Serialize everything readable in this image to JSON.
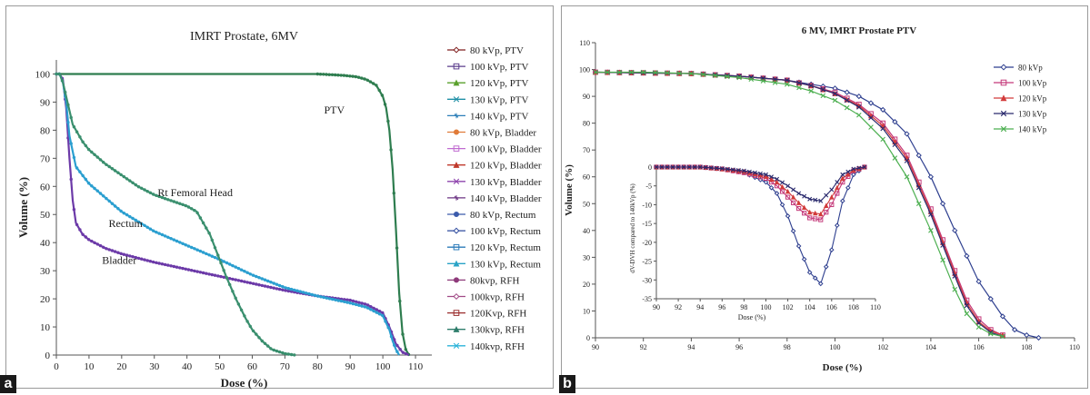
{
  "chart_data": [
    {
      "panel_label": "a",
      "type": "line",
      "title": "IMRT Prostate, 6MV",
      "xlabel": "Dose (%)",
      "ylabel": "Volume (%)",
      "xlim": [
        0,
        115
      ],
      "ylim": [
        0,
        105
      ],
      "xticks": [
        0,
        10,
        20,
        30,
        40,
        50,
        60,
        70,
        80,
        90,
        100,
        110
      ],
      "yticks": [
        0,
        10,
        20,
        30,
        40,
        50,
        60,
        70,
        80,
        90,
        100
      ],
      "grid": false,
      "legend_position": "right",
      "annotations": [
        "PTV",
        "Rt Femoral Head",
        "Rectum",
        "Bladder"
      ],
      "legend": [
        {
          "name": "80 kVp, PTV",
          "color": "#7f1d1d",
          "marker": "diamond"
        },
        {
          "name": "100 kVp, PTV",
          "color": "#5b3d8c",
          "marker": "square"
        },
        {
          "name": "120 kVp, PTV",
          "color": "#5aa02c",
          "marker": "triangle"
        },
        {
          "name": "130 kVp, PTV",
          "color": "#1f8fa6",
          "marker": "x"
        },
        {
          "name": "140 kVp, PTV",
          "color": "#2c7fb8",
          "marker": "star"
        },
        {
          "name": "80 kVp, Bladder",
          "color": "#e07b39",
          "marker": "circle"
        },
        {
          "name": "100 kVp, Bladder",
          "color": "#c06bd1",
          "marker": "square"
        },
        {
          "name": "120 kVp, Bladder",
          "color": "#c0392b",
          "marker": "triangle"
        },
        {
          "name": "130 kVp, Bladder",
          "color": "#8e44ad",
          "marker": "x"
        },
        {
          "name": "140 kVp, Bladder",
          "color": "#6c3483",
          "marker": "star"
        },
        {
          "name": "80 kVp, Rectum",
          "color": "#3b5bab",
          "marker": "circle"
        },
        {
          "name": "100 kVp, Rectum",
          "color": "#2e4a9e",
          "marker": "diamond"
        },
        {
          "name": "120 kVp, Rectum",
          "color": "#2b7bba",
          "marker": "square"
        },
        {
          "name": "130 kVp, Rectum",
          "color": "#29a3c6",
          "marker": "triangle"
        },
        {
          "name": "80kvp, RFH",
          "color": "#8e3a7a",
          "marker": "circle"
        },
        {
          "name": "100kvp, RFH",
          "color": "#a14a86",
          "marker": "diamond"
        },
        {
          "name": "120Kvp, RFH",
          "color": "#9b2f2f",
          "marker": "square"
        },
        {
          "name": "130kvp, RFH",
          "color": "#2e7d6b",
          "marker": "triangle"
        },
        {
          "name": "140kvp, RFH",
          "color": "#2bb3d9",
          "marker": "x"
        }
      ],
      "series": [
        {
          "structure": "PTV",
          "color": "#2e7d4f",
          "x": [
            0,
            80,
            88,
            92,
            95,
            98,
            100,
            101,
            102,
            103,
            104,
            105,
            106,
            107,
            108
          ],
          "y": [
            100,
            100,
            99.5,
            99,
            98,
            96,
            92,
            88,
            80,
            66,
            45,
            22,
            8,
            2,
            0
          ]
        },
        {
          "structure": "Bladder",
          "color": "#6c3aa8",
          "x": [
            0,
            1,
            2,
            3,
            4,
            5,
            6,
            8,
            10,
            15,
            20,
            30,
            40,
            50,
            60,
            70,
            80,
            90,
            95,
            100,
            102,
            104,
            106,
            108
          ],
          "y": [
            100,
            100,
            98,
            88,
            70,
            55,
            47,
            43,
            41,
            38,
            36,
            33,
            30.5,
            28,
            25.5,
            23,
            21,
            19.5,
            18,
            15,
            10,
            4,
            1,
            0
          ]
        },
        {
          "structure": "Rectum",
          "color": "#2b9fd0",
          "x": [
            0,
            1,
            2,
            3,
            4,
            6,
            8,
            10,
            15,
            20,
            30,
            40,
            50,
            60,
            70,
            80,
            90,
            95,
            100,
            102,
            103,
            104,
            105
          ],
          "y": [
            100,
            100,
            97,
            90,
            78,
            67,
            64,
            61,
            56,
            51,
            44,
            39,
            34,
            28.5,
            24,
            21,
            18.5,
            17,
            14,
            9,
            5,
            2,
            0
          ]
        },
        {
          "structure": "Rt Femoral Head",
          "color": "#3a8f6e",
          "x": [
            0,
            1,
            2,
            3,
            5,
            8,
            10,
            15,
            20,
            25,
            30,
            35,
            40,
            43,
            45,
            47,
            50,
            52,
            55,
            58,
            60,
            63,
            66,
            70,
            73
          ],
          "y": [
            100,
            100,
            97,
            92,
            82,
            76,
            73,
            68,
            64,
            60,
            57,
            55,
            53,
            51,
            47,
            43,
            34,
            28,
            20,
            13,
            9,
            5,
            2,
            0.5,
            0
          ]
        }
      ]
    },
    {
      "panel_label": "b",
      "type": "line",
      "title": "6 MV, IMRT Prostate PTV",
      "xlabel": "Dose (%)",
      "ylabel": "Volume (%)",
      "xlim": [
        90,
        110
      ],
      "ylim": [
        0,
        110
      ],
      "xticks": [
        90,
        92,
        94,
        96,
        98,
        100,
        102,
        104,
        106,
        108,
        110
      ],
      "yticks": [
        0,
        10,
        20,
        30,
        40,
        50,
        60,
        70,
        80,
        90,
        100,
        110
      ],
      "grid": false,
      "legend_position": "top-right",
      "series": [
        {
          "name": "80 kVp",
          "color": "#2e3f8f",
          "marker": "diamond",
          "x": [
            90,
            94,
            96,
            98,
            99,
            100,
            101,
            102,
            103,
            104,
            105,
            106,
            107,
            107.5,
            108,
            108.5
          ],
          "y": [
            99,
            98.5,
            97.5,
            96,
            94.5,
            93,
            90,
            85,
            76,
            60,
            40,
            21,
            8,
            3,
            1,
            0
          ]
        },
        {
          "name": "100 kVp",
          "color": "#c4397a",
          "marker": "square",
          "x": [
            90,
            94,
            96,
            98,
            99,
            100,
            101,
            102,
            103,
            104,
            105,
            105.5,
            106,
            106.5,
            107
          ],
          "y": [
            99,
            98.5,
            97.5,
            96,
            94,
            91.5,
            87,
            80,
            68,
            48,
            25,
            14,
            7,
            3,
            1
          ]
        },
        {
          "name": "120 kVp",
          "color": "#d23b3b",
          "marker": "triangle",
          "x": [
            90,
            94,
            96,
            98,
            99,
            100,
            101,
            102,
            103,
            104,
            105,
            105.5,
            106,
            106.5,
            107
          ],
          "y": [
            99,
            98.5,
            97.5,
            96,
            94,
            91,
            86.5,
            79,
            67,
            47,
            24,
            13,
            6,
            2.5,
            1
          ]
        },
        {
          "name": "130 kVp",
          "color": "#2b2b6e",
          "marker": "x",
          "x": [
            90,
            94,
            96,
            98,
            99,
            100,
            101,
            102,
            103,
            104,
            105,
            105.5,
            106,
            106.5,
            107
          ],
          "y": [
            99,
            98.5,
            97.5,
            96,
            94,
            91,
            86,
            78,
            66,
            46,
            23,
            12,
            5.5,
            2,
            0.5
          ]
        },
        {
          "name": "140 kVp",
          "color": "#4caf50",
          "marker": "x",
          "x": [
            90,
            92,
            94,
            96,
            98,
            99,
            100,
            101,
            102,
            103,
            104,
            104.5,
            105,
            105.5,
            106,
            106.5,
            107
          ],
          "y": [
            99,
            99,
            98.5,
            97,
            94.5,
            92,
            88.5,
            83,
            74,
            60,
            40,
            29,
            18,
            9,
            4,
            1.5,
            0.5
          ]
        }
      ],
      "inset": {
        "type": "line",
        "xlabel": "Dose (%)",
        "ylabel": "dV-DVH compared to 140kVp (%)",
        "xlim": [
          90,
          110
        ],
        "ylim": [
          -35,
          0
        ],
        "xticks": [
          90,
          92,
          94,
          96,
          98,
          100,
          102,
          104,
          106,
          108,
          110
        ],
        "yticks": [
          0,
          -5,
          -10,
          -15,
          -20,
          -25,
          -30,
          -35
        ],
        "series": [
          {
            "name": "80 kVp",
            "color": "#2e3f8f",
            "marker": "diamond",
            "x": [
              90,
              94,
              96,
              98,
              100,
              101,
              102,
              103,
              104,
              105,
              106,
              107,
              108,
              109
            ],
            "y": [
              0,
              0,
              -0.5,
              -1.5,
              -4,
              -7,
              -13,
              -21,
              -28,
              -31,
              -22,
              -9,
              -2,
              0
            ]
          },
          {
            "name": "100 kVp",
            "color": "#c4397a",
            "marker": "square",
            "x": [
              90,
              94,
              96,
              98,
              100,
              101,
              102,
              103,
              104,
              105,
              106,
              107,
              108,
              109
            ],
            "y": [
              0,
              0,
              -0.5,
              -1.5,
              -3,
              -5,
              -8,
              -11,
              -13.5,
              -14,
              -10,
              -4,
              -1,
              0
            ]
          },
          {
            "name": "120 kVp",
            "color": "#d23b3b",
            "marker": "triangle",
            "x": [
              90,
              94,
              96,
              98,
              100,
              101,
              102,
              103,
              104,
              105,
              106,
              107,
              108,
              109
            ],
            "y": [
              0,
              0,
              -0.5,
              -1.2,
              -2.5,
              -4,
              -6.5,
              -9.5,
              -12,
              -12.5,
              -8,
              -3,
              -0.8,
              0
            ]
          },
          {
            "name": "130 kVp",
            "color": "#2b2b6e",
            "marker": "x",
            "x": [
              90,
              94,
              96,
              98,
              100,
              101,
              102,
              103,
              104,
              105,
              106,
              107,
              108,
              109
            ],
            "y": [
              0,
              0,
              -0.4,
              -1,
              -2,
              -3.2,
              -5,
              -7,
              -8.5,
              -9,
              -6,
              -2,
              -0.5,
              0
            ]
          }
        ]
      }
    }
  ]
}
